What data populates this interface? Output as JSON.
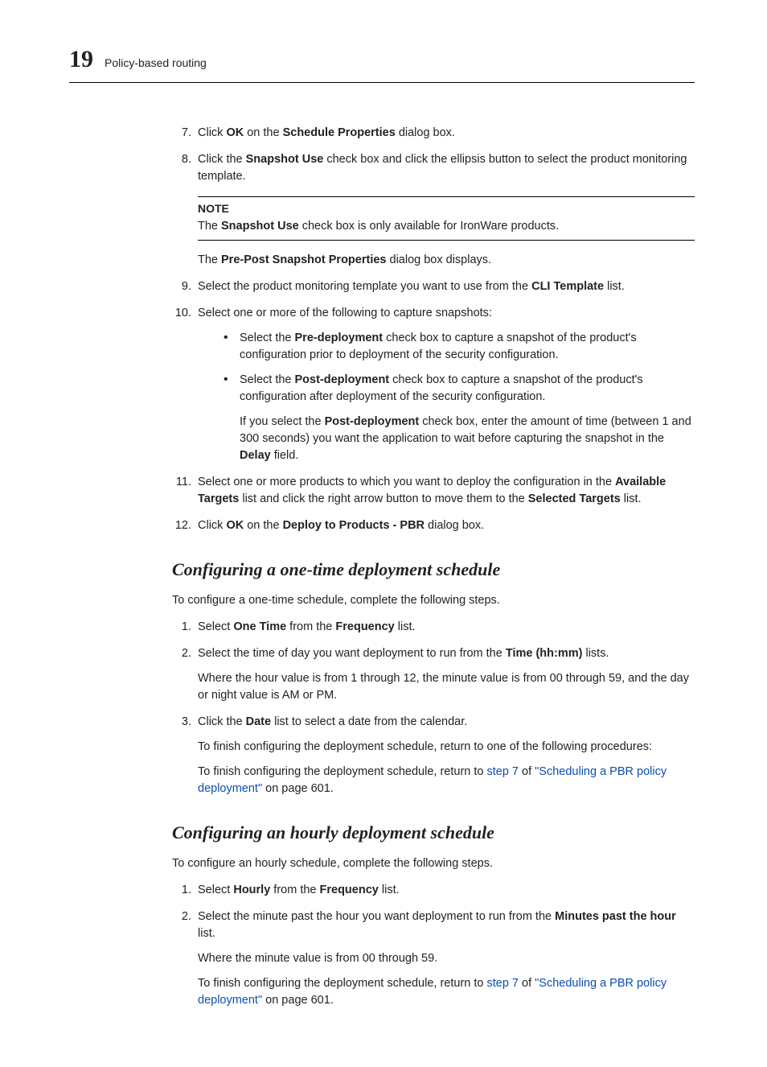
{
  "header": {
    "chapter_number": "19",
    "chapter_title": "Policy-based routing"
  },
  "steps_a": {
    "s7": {
      "num": "7.",
      "pre": "Click ",
      "b1": "OK",
      "mid": " on the ",
      "b2": "Schedule Properties",
      "post": " dialog box."
    },
    "s8": {
      "num": "8.",
      "pre": "Click the ",
      "b1": "Snapshot Use",
      "post": " check box and click the ellipsis button to select the product monitoring template.",
      "note_title": "NOTE",
      "note_pre": "The ",
      "note_b": "Snapshot Use",
      "note_post": " check box is only available for IronWare products.",
      "after_pre": "The ",
      "after_b": "Pre-Post Snapshot Properties",
      "after_post": " dialog box displays."
    },
    "s9": {
      "num": "9.",
      "pre": "Select the product monitoring template you want to use from the ",
      "b1": "CLI Template",
      "post": " list."
    },
    "s10": {
      "num": "10.",
      "text": "Select one or more of the following to capture snapshots:",
      "bul1_pre": "Select the ",
      "bul1_b": "Pre-deployment",
      "bul1_post": " check box to capture a snapshot of the product's configuration prior to deployment of the security configuration.",
      "bul2_pre": "Select the ",
      "bul2_b": "Post-deployment",
      "bul2_post": " check box to capture a snapshot of the product's configuration after deployment of the security configuration.",
      "bul2_p2_pre": "If you select the ",
      "bul2_p2_b1": "Post-deployment",
      "bul2_p2_mid": " check box, enter the amount of time (between 1 and 300 seconds) you want the application to wait before capturing the snapshot in the ",
      "bul2_p2_b2": "Delay",
      "bul2_p2_post": " field."
    },
    "s11": {
      "num": "11.",
      "pre": "Select one or more products to which you want to deploy the configuration in the ",
      "b1": "Available Targets",
      "mid": " list and click the right arrow button to move them to the ",
      "b2": "Selected Targets",
      "post": " list."
    },
    "s12": {
      "num": "12.",
      "pre": "Click ",
      "b1": "OK",
      "mid": " on the ",
      "b2": "Deploy to Products - PBR",
      "post": " dialog box."
    }
  },
  "section1": {
    "title": "Configuring a one-time deployment schedule",
    "intro": "To configure a one-time schedule, complete the following steps.",
    "s1": {
      "num": "1.",
      "pre": "Select ",
      "b1": "One Time",
      "mid": " from the ",
      "b2": "Frequency",
      "post": " list."
    },
    "s2": {
      "num": "2.",
      "pre": "Select the time of day you want deployment to run from the ",
      "b1": "Time (hh:mm)",
      "post": " lists.",
      "p2": "Where the hour value is from 1 through 12, the minute value is from 00 through 59, and the day or night value is AM or PM."
    },
    "s3": {
      "num": "3.",
      "pre": "Click the ",
      "b1": "Date",
      "post": " list to select a date from the calendar.",
      "p2": "To finish configuring the deployment schedule, return to one of the following procedures:",
      "p3_pre": "To finish configuring the deployment schedule, return to ",
      "p3_link1": "step 7",
      "p3_mid": " of ",
      "p3_link2": "\"Scheduling a PBR policy deployment\"",
      "p3_post": " on page 601."
    }
  },
  "section2": {
    "title": "Configuring an hourly deployment schedule",
    "intro": "To configure an hourly schedule, complete the following steps.",
    "s1": {
      "num": "1.",
      "pre": "Select ",
      "b1": "Hourly",
      "mid": " from the ",
      "b2": "Frequency",
      "post": " list."
    },
    "s2": {
      "num": "2.",
      "pre": "Select the minute past the hour you want deployment to run from the ",
      "b1": "Minutes past the hour",
      "post": " list.",
      "p2": "Where the minute value is from 00 through 59.",
      "p3_pre": "To finish configuring the deployment schedule, return to ",
      "p3_link1": "step 7",
      "p3_mid": " of ",
      "p3_link2": "\"Scheduling a PBR policy deployment\"",
      "p3_post": " on page 601."
    }
  }
}
